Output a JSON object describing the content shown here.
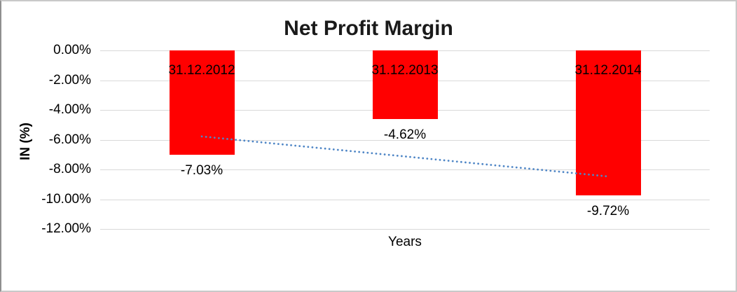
{
  "chart_data": {
    "type": "bar",
    "title": "Net Profit Margin",
    "categories": [
      "31.12.2012",
      "31.12.2013",
      "31.12.2014"
    ],
    "values": [
      -7.03,
      -4.62,
      -9.72
    ],
    "value_labels": [
      "-7.03%",
      "-4.62%",
      "-9.72%"
    ],
    "xlabel": "Years",
    "ylabel": "IN (%)",
    "ylim": [
      -12,
      0
    ],
    "ytick_step": 2,
    "ytick_labels": [
      "0.00%",
      "-2.00%",
      "-4.00%",
      "-6.00%",
      "-8.00%",
      "-10.00%",
      "-12.00%"
    ],
    "grid": true,
    "legend": "none",
    "bar_color": "#ff0000",
    "gridline_color": "#d9d9d9",
    "label_color": "#000000",
    "trendline": {
      "type": "linear",
      "style": "dotted",
      "color": "#4f86c6",
      "start_value": -5.78,
      "end_value": -8.47
    }
  }
}
